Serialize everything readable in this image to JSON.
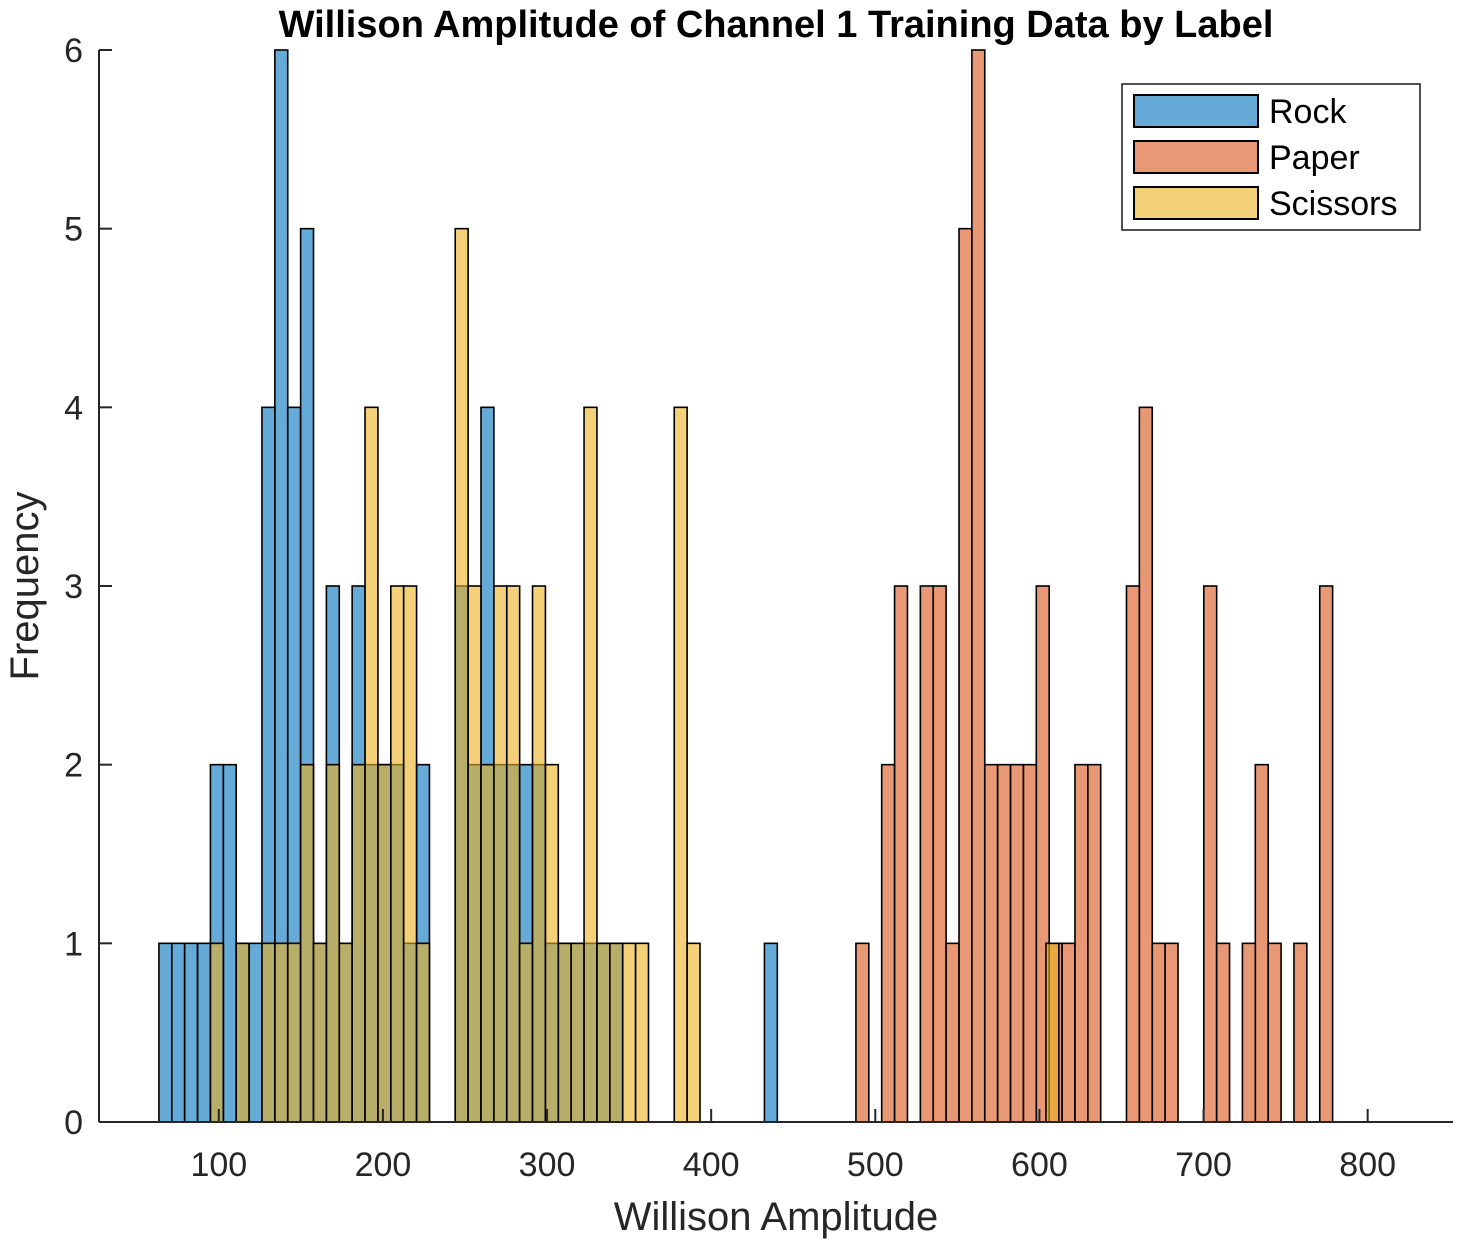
{
  "chart_data": {
    "type": "bar",
    "title": "Willison Amplitude of Channel 1 Training Data by Label",
    "xlabel": "Willison Amplitude",
    "ylabel": "Frequency",
    "xlim": [
      27,
      852
    ],
    "ylim": [
      0,
      6
    ],
    "xticks": [
      100,
      200,
      300,
      400,
      500,
      600,
      700,
      800
    ],
    "yticks": [
      0,
      1,
      2,
      3,
      4,
      5,
      6
    ],
    "grid": false,
    "legend_position": "top-right",
    "bin_width": 7.85,
    "series": [
      {
        "name": "Rock",
        "color": "#0072BD",
        "bin_edges_start": 63.5,
        "values": [
          1,
          1,
          1,
          1,
          2,
          2,
          1,
          1,
          4,
          6,
          4,
          5,
          1,
          3,
          1,
          3,
          2,
          2,
          2,
          1,
          2,
          0,
          0,
          3,
          2,
          4,
          2,
          2,
          2,
          2,
          1,
          1,
          1,
          1,
          1,
          1,
          0,
          0,
          0,
          0,
          0,
          0,
          0,
          0,
          0,
          0,
          0,
          1
        ]
      },
      {
        "name": "Paper",
        "color": "#D95319",
        "bin_edges_start": 488.2,
        "values": [
          1,
          0,
          2,
          3,
          0,
          3,
          3,
          1,
          5,
          6,
          2,
          2,
          2,
          2,
          3,
          1,
          1,
          2,
          2,
          0,
          0,
          3,
          4,
          1,
          1,
          0,
          0,
          3,
          1,
          0,
          1,
          2,
          1,
          0,
          1,
          0,
          3
        ]
      },
      {
        "name": "Scissors",
        "color": "#EDB120",
        "bin_edges_start": 94.9,
        "values": [
          1,
          0,
          1,
          0,
          1,
          1,
          1,
          2,
          1,
          2,
          1,
          2,
          4,
          2,
          3,
          3,
          1,
          0,
          0,
          5,
          3,
          2,
          3,
          3,
          1,
          3,
          2,
          1,
          1,
          4,
          1,
          1,
          1,
          1,
          0,
          0,
          4,
          1
        ]
      }
    ],
    "extra_bins": [
      {
        "series": "Scissors",
        "x_start": 604.0,
        "value": 1
      }
    ]
  }
}
